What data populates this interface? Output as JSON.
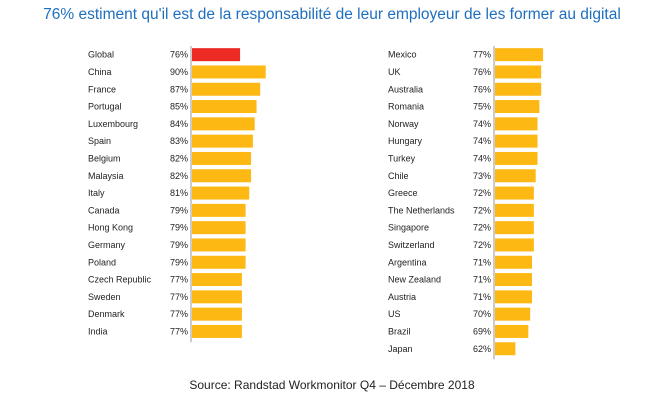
{
  "title": "76% estiment qu'il est de la responsabilité de leur employeur de les former au digital",
  "source": "Source: Randstad Workmonitor Q4 – Décembre 2018",
  "colors": {
    "highlight": "#ee2a24",
    "bar": "#fdb813",
    "axis": "#999999",
    "title": "#1f6fbf"
  },
  "chart_data": [
    {
      "type": "bar",
      "orientation": "horizontal",
      "categories": [
        "Global",
        "China",
        "France",
        "Portugal",
        "Luxembourg",
        "Spain",
        "Belgium",
        "Malaysia",
        "Italy",
        "Canada",
        "Hong Kong",
        "Germany",
        "Poland",
        "Czech Republic",
        "Sweden",
        "Denmark",
        "India"
      ],
      "values": [
        76,
        90,
        87,
        85,
        84,
        83,
        82,
        82,
        81,
        79,
        79,
        79,
        79,
        77,
        77,
        77,
        77
      ],
      "value_labels": [
        "76%",
        "90%",
        "87%",
        "85%",
        "84%",
        "83%",
        "82%",
        "82%",
        "81%",
        "79%",
        "79%",
        "79%",
        "79%",
        "77%",
        "77%",
        "77%",
        "77%"
      ],
      "highlight": "Global",
      "xlim": [
        0,
        100
      ]
    },
    {
      "type": "bar",
      "orientation": "horizontal",
      "categories": [
        "Mexico",
        "UK",
        "Australia",
        "Romania",
        "Norway",
        "Hungary",
        "Turkey",
        "Chile",
        "Greece",
        "The Netherlands",
        "Singapore",
        "Switzerland",
        "Argentina",
        "New Zealand",
        "Austria",
        "US",
        "Brazil",
        "Japan"
      ],
      "values": [
        77,
        76,
        76,
        75,
        74,
        74,
        74,
        73,
        72,
        72,
        72,
        72,
        71,
        71,
        71,
        70,
        69,
        62
      ],
      "value_labels": [
        "77%",
        "76%",
        "76%",
        "75%",
        "74%",
        "74%",
        "74%",
        "73%",
        "72%",
        "72%",
        "72%",
        "72%",
        "71%",
        "71%",
        "71%",
        "70%",
        "69%",
        "62%"
      ],
      "xlim": [
        0,
        100
      ]
    }
  ]
}
